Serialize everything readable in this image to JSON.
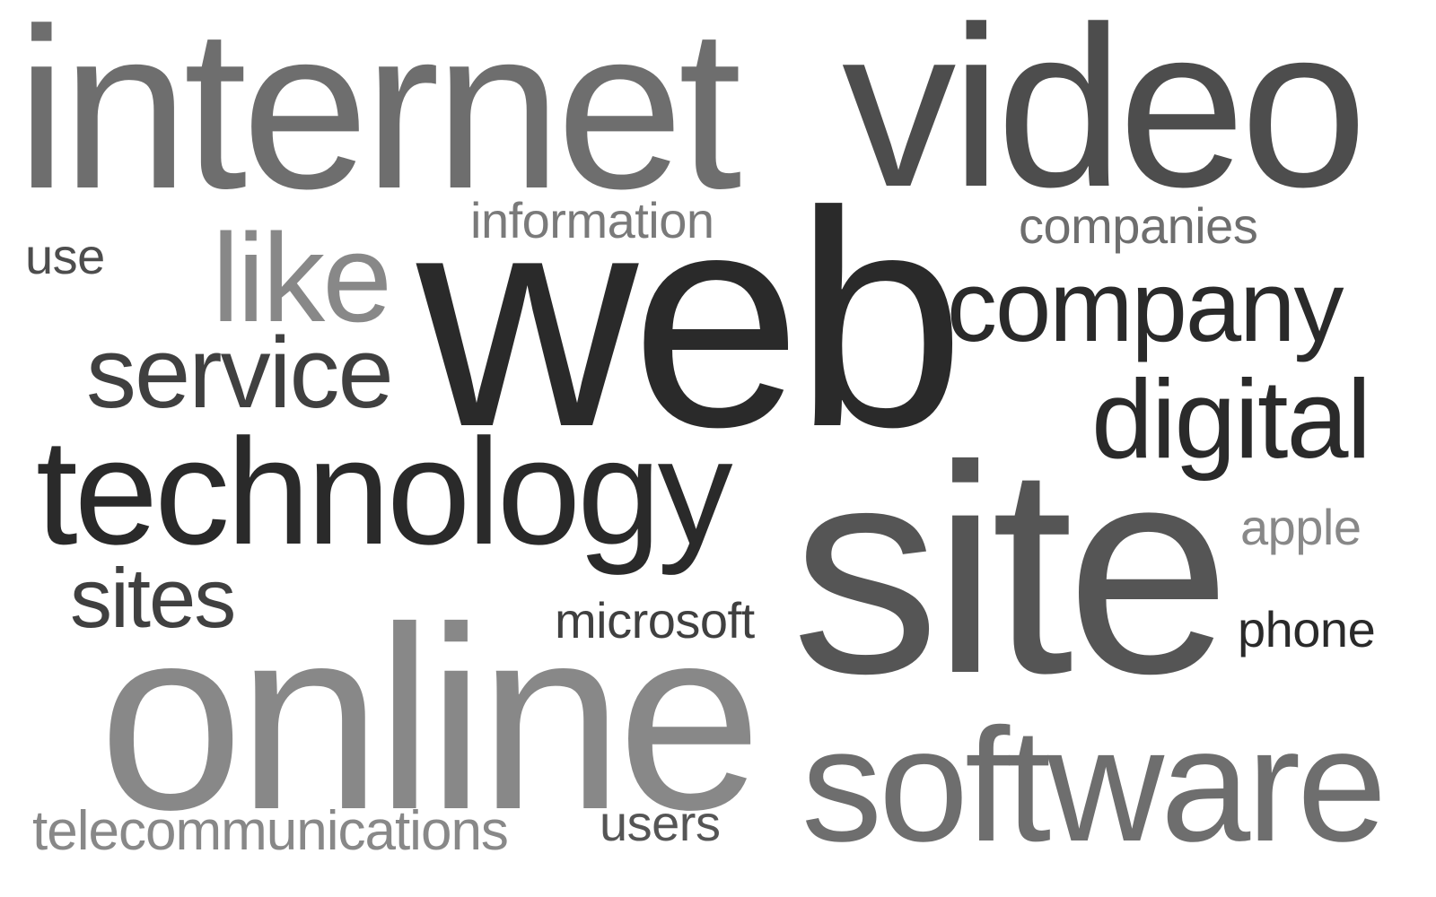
{
  "word_cloud": {
    "words": [
      {
        "text": "internet",
        "color": "#6e6e6e"
      },
      {
        "text": "video",
        "color": "#4d4d4d"
      },
      {
        "text": "information",
        "color": "#7a7a7a"
      },
      {
        "text": "companies",
        "color": "#6e6e6e"
      },
      {
        "text": "use",
        "color": "#4d4d4d"
      },
      {
        "text": "like",
        "color": "#888888"
      },
      {
        "text": "web",
        "color": "#2a2a2a"
      },
      {
        "text": "company",
        "color": "#2a2a2a"
      },
      {
        "text": "service",
        "color": "#404040"
      },
      {
        "text": "digital",
        "color": "#2a2a2a"
      },
      {
        "text": "technology",
        "color": "#2a2a2a"
      },
      {
        "text": "apple",
        "color": "#888888"
      },
      {
        "text": "site",
        "color": "#555555"
      },
      {
        "text": "sites",
        "color": "#404040"
      },
      {
        "text": "microsoft",
        "color": "#404040"
      },
      {
        "text": "phone",
        "color": "#2a2a2a"
      },
      {
        "text": "online",
        "color": "#888888"
      },
      {
        "text": "software",
        "color": "#6e6e6e"
      },
      {
        "text": "telecommunications",
        "color": "#888888"
      },
      {
        "text": "users",
        "color": "#555555"
      }
    ]
  }
}
